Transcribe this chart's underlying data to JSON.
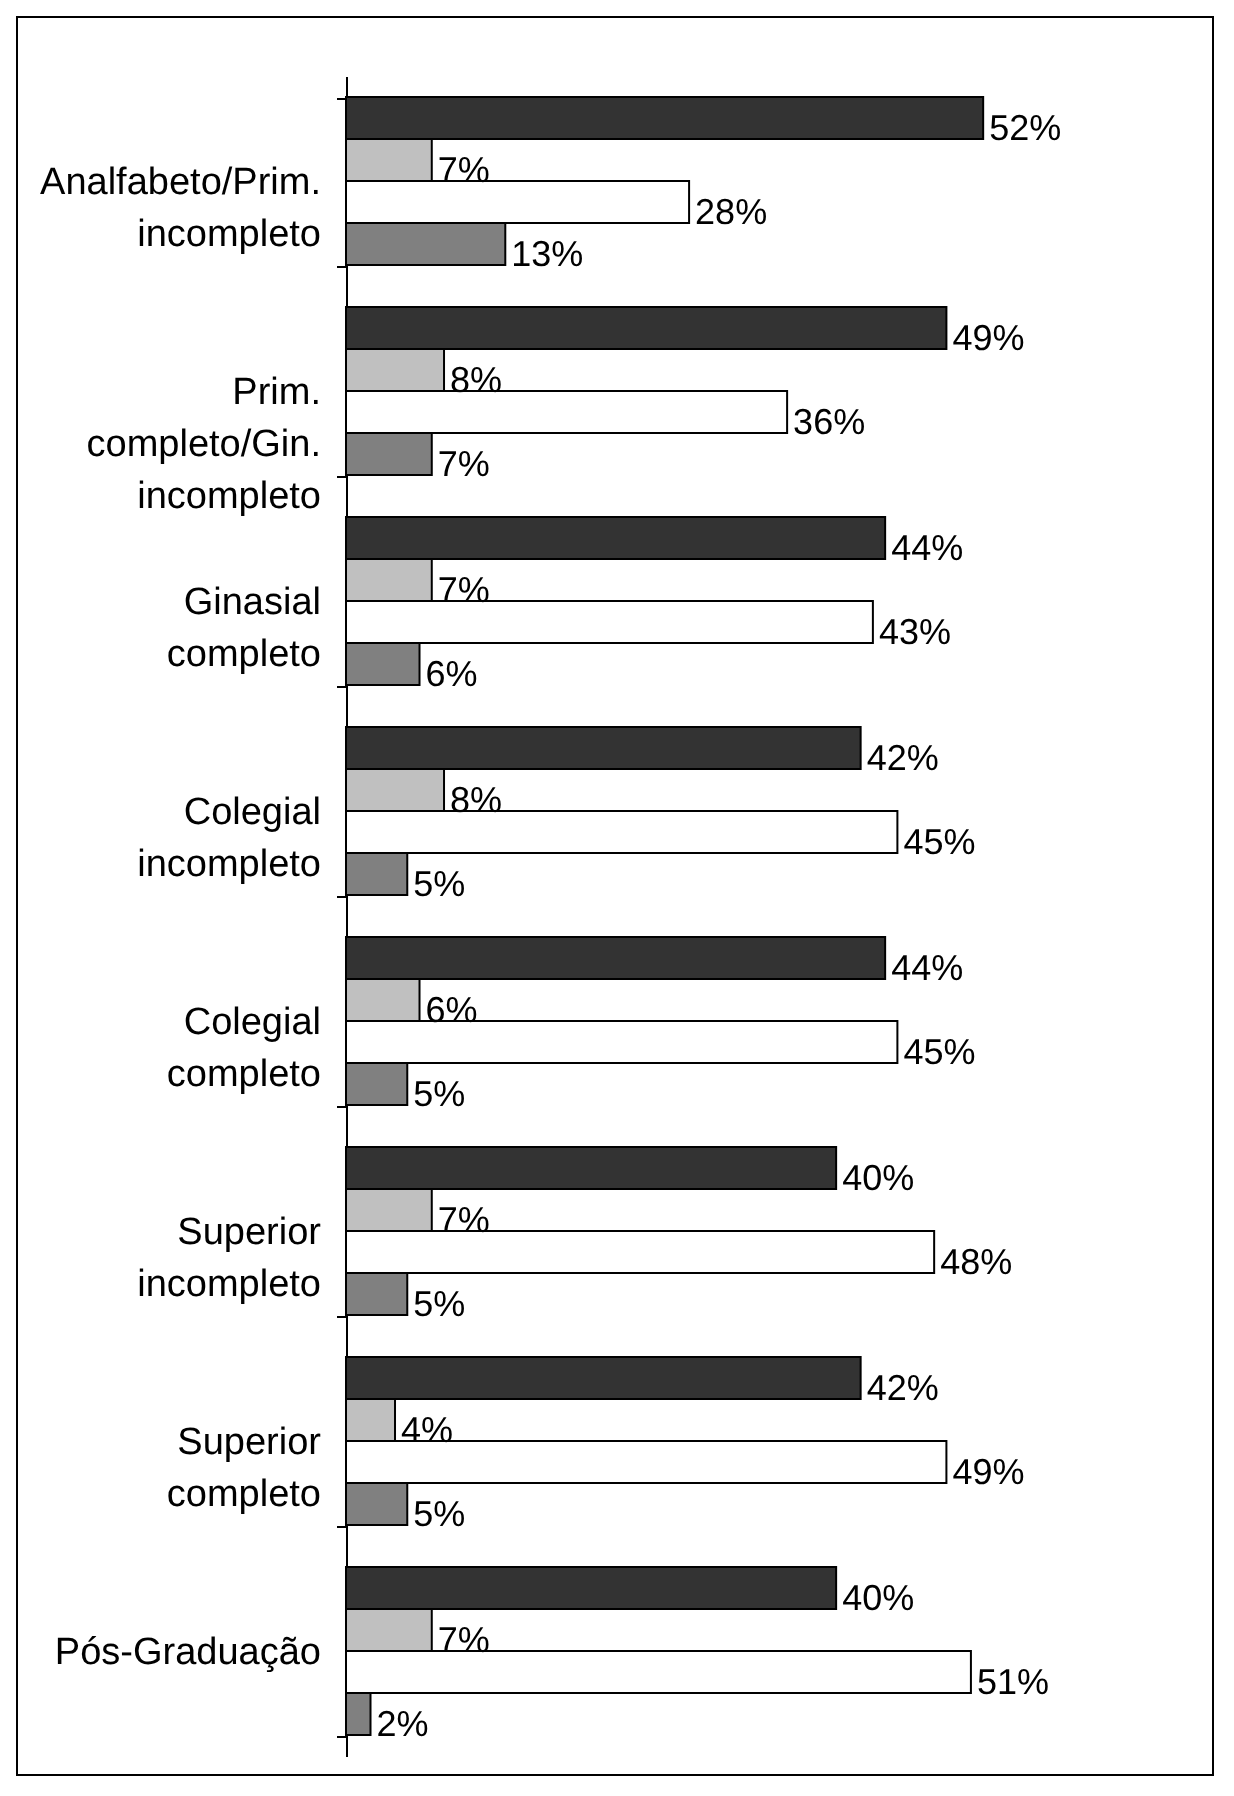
{
  "chart_data": {
    "type": "bar",
    "orientation": "horizontal",
    "categories": [
      "Analfabeto/Prim.\nincompleto",
      "Prim.\ncompleto/Gin.\nincompleto",
      "Ginasial\ncompleto",
      "Colegial\nincompleto",
      "Colegial\ncompleto",
      "Superior\nincompleto",
      "Superior\ncompleto",
      "Pós-Graduação"
    ],
    "series": [
      {
        "color": "#333333",
        "values": [
          52,
          49,
          44,
          42,
          44,
          40,
          42,
          40
        ],
        "value_labels": [
          "52%",
          "49%",
          "44%",
          "42%",
          "44%",
          "40%",
          "42%",
          "40%"
        ]
      },
      {
        "color": "#c0c0c0",
        "values": [
          7,
          8,
          7,
          8,
          6,
          7,
          4,
          7
        ],
        "value_labels": [
          "7%",
          "8%",
          "7%",
          "8%",
          "6%",
          "7%",
          "4%",
          "7%"
        ]
      },
      {
        "color": "#ffffff",
        "values": [
          28,
          36,
          43,
          45,
          45,
          48,
          49,
          51
        ],
        "value_labels": [
          "28%",
          "36%",
          "43%",
          "45%",
          "45%",
          "48%",
          "49%",
          "51%"
        ]
      },
      {
        "color": "#808080",
        "values": [
          13,
          7,
          6,
          5,
          5,
          5,
          5,
          2
        ],
        "value_labels": [
          "13%",
          "7%",
          "6%",
          "5%",
          "5%",
          "5%",
          "5%",
          "2%"
        ]
      }
    ],
    "grid": false,
    "legend": false
  }
}
